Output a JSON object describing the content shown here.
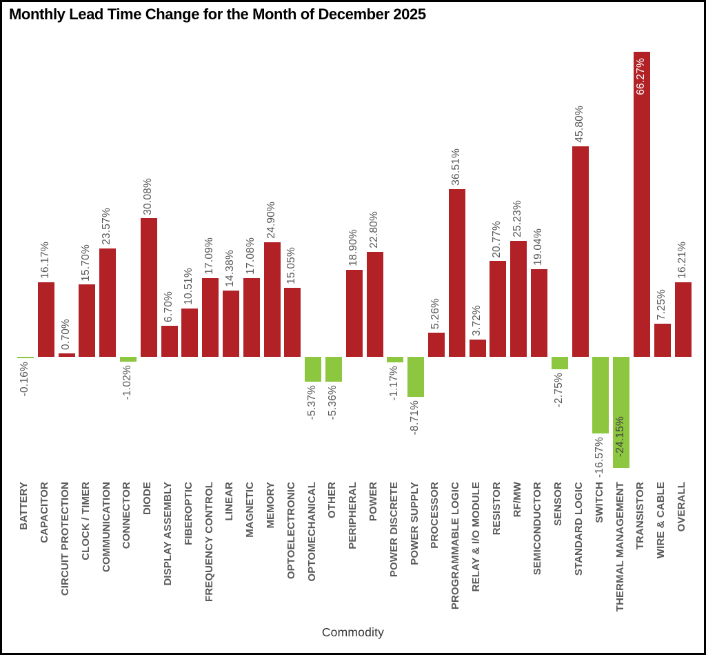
{
  "title": "Monthly Lead Time Change for the Month of December 2025",
  "chart_data": {
    "type": "bar",
    "title": "Monthly Lead Time Change for the Month of December 2025",
    "xlabel": "Commodity",
    "ylabel": "",
    "ylim": [
      -24.15,
      66.27
    ],
    "grid": false,
    "legend": "none",
    "categories": [
      "BATTERY",
      "CAPACITOR",
      "CIRCUIT PROTECTION",
      "CLOCK / TIMER",
      "COMMUNICATION",
      "CONNECTOR",
      "DIODE",
      "DISPLAY ASSEMBLY",
      "FIBEROPTIC",
      "FREQUENCY CONTROL",
      "LINEAR",
      "MAGNETIC",
      "MEMORY",
      "OPTOELECTRONIC",
      "OPTOMECHANICAL",
      "OTHER",
      "PERIPHERAL",
      "POWER",
      "POWER DISCRETE",
      "POWER SUPPLY",
      "PROCESSOR",
      "PROGRAMMABLE LOGIC",
      "RELAY & I/O MODULE",
      "RESISTOR",
      "RF/MW",
      "SEMICONDUCTOR",
      "SENSOR",
      "STANDARD LOGIC",
      "SWITCH",
      "THERMAL MANAGEMENT",
      "TRANSISTOR",
      "WIRE & CABLE",
      "OVERALL"
    ],
    "values": [
      -0.16,
      16.17,
      0.7,
      15.7,
      23.57,
      -1.02,
      30.08,
      6.7,
      10.51,
      17.09,
      14.38,
      17.08,
      24.9,
      15.05,
      -5.37,
      -5.36,
      18.9,
      22.8,
      -1.17,
      -8.71,
      5.26,
      36.51,
      3.72,
      20.77,
      25.23,
      19.04,
      -2.75,
      45.8,
      -16.57,
      -24.15,
      66.27,
      7.25,
      16.21
    ],
    "labels": [
      "-0.16%",
      "16.17%",
      "0.70%",
      "15.70%",
      "23.57%",
      "-1.02%",
      "30.08%",
      "6.70%",
      "10.51%",
      "17.09%",
      "14.38%",
      "17.08%",
      "24.90%",
      "15.05%",
      "-5.37%",
      "-5.36%",
      "18.90%",
      "22.80%",
      "-1.17%",
      "-8.71%",
      "5.26%",
      "36.51%",
      "3.72%",
      "20.77%",
      "25.23%",
      "19.04%",
      "-2.75%",
      "45.80%",
      "-16.57%",
      "-24.15%",
      "66.27%",
      "7.25%",
      "16.21%"
    ],
    "colors": {
      "positive_bar": "#B22126",
      "negative_bar": "#8DC63F",
      "value_label": "#595959",
      "category_label": "#595959",
      "axis_title": "#333333",
      "title": "#000000"
    },
    "label_overrides": [
      {
        "index": 30,
        "position": "inside-top",
        "color": "#FFFFFF"
      },
      {
        "index": 29,
        "position": "inside-bottom",
        "color": "#404040"
      }
    ]
  }
}
